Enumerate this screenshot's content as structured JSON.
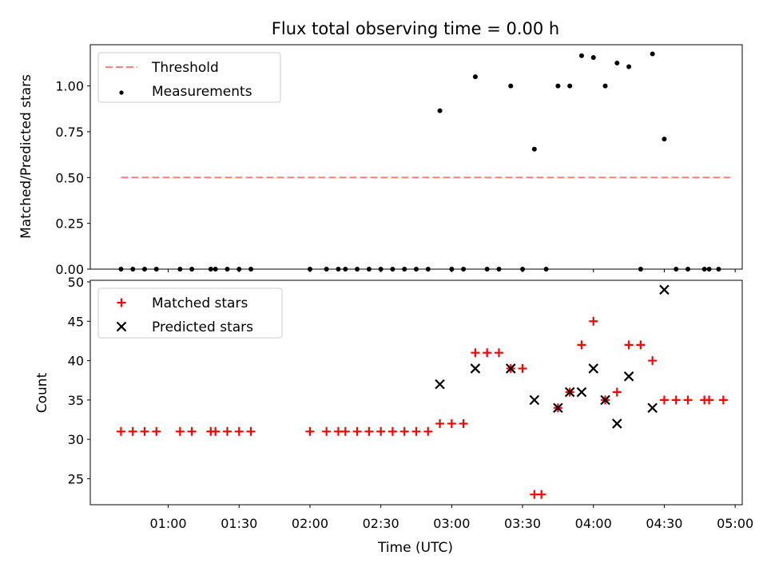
{
  "chart_data": [
    {
      "type": "scatter",
      "title": "Flux total observing time = 0.00 h",
      "xlabel": "",
      "ylabel": "Matched/Predicted stars",
      "ylim": [
        0,
        1.225
      ],
      "yticks": [
        "0.00",
        "0.25",
        "0.50",
        "0.75",
        "1.00"
      ],
      "xlim": [
        "00:27",
        "05:03"
      ],
      "legend": {
        "position": "upper-left",
        "entries": [
          "Threshold",
          "Measurements"
        ]
      },
      "series": [
        {
          "name": "Threshold",
          "style": "dashed-line",
          "color": "#ff7f7f",
          "x": [
            "00:40",
            "04:58"
          ],
          "y": [
            0.5,
            0.5
          ]
        },
        {
          "name": "Measurements",
          "style": "dot",
          "color": "#000000",
          "x": [
            "00:40",
            "00:45",
            "00:50",
            "00:55",
            "01:05",
            "01:10",
            "01:18",
            "01:20",
            "01:25",
            "01:30",
            "01:35",
            "02:00",
            "02:07",
            "02:12",
            "02:15",
            "02:20",
            "02:25",
            "02:30",
            "02:35",
            "02:40",
            "02:45",
            "02:50",
            "02:55",
            "03:00",
            "03:05",
            "03:10",
            "03:15",
            "03:20",
            "03:25",
            "03:30",
            "03:35",
            "03:40",
            "03:45",
            "03:50",
            "03:55",
            "04:00",
            "04:05",
            "04:10",
            "04:15",
            "04:20",
            "04:25",
            "04:30",
            "04:35",
            "04:40",
            "04:47",
            "04:49",
            "04:53"
          ],
          "y": [
            0,
            0,
            0,
            0,
            0,
            0,
            0,
            0,
            0,
            0,
            0,
            0,
            0,
            0,
            0,
            0,
            0,
            0,
            0,
            0,
            0,
            0,
            0.865,
            0,
            0,
            1.05,
            0,
            0,
            1.0,
            0,
            0.655,
            0,
            1.0,
            1.0,
            1.165,
            1.155,
            1.0,
            1.125,
            1.105,
            0,
            1.175,
            0.71,
            0,
            0,
            0,
            0,
            0
          ]
        }
      ]
    },
    {
      "type": "scatter",
      "title": "",
      "xlabel": "Time (UTC)",
      "ylabel": "Count",
      "ylim": [
        21.7,
        50.2
      ],
      "yticks": [
        "25",
        "30",
        "35",
        "40",
        "45",
        "50"
      ],
      "xlim": [
        "00:27",
        "05:03"
      ],
      "xticks": [
        "01:00",
        "01:30",
        "02:00",
        "02:30",
        "03:00",
        "03:30",
        "04:00",
        "04:30",
        "05:00"
      ],
      "legend": {
        "position": "upper-left",
        "entries": [
          "Matched stars",
          "Predicted stars"
        ]
      },
      "series": [
        {
          "name": "Matched stars",
          "marker": "plus",
          "color": "#ff0000",
          "x": [
            "00:40",
            "00:45",
            "00:50",
            "00:55",
            "01:05",
            "01:10",
            "01:18",
            "01:20",
            "01:25",
            "01:30",
            "01:35",
            "02:00",
            "02:07",
            "02:12",
            "02:15",
            "02:20",
            "02:25",
            "02:30",
            "02:35",
            "02:40",
            "02:45",
            "02:50",
            "02:55",
            "03:00",
            "03:05",
            "03:10",
            "03:15",
            "03:20",
            "03:25",
            "03:30",
            "03:35",
            "03:38",
            "03:45",
            "03:50",
            "03:55",
            "04:00",
            "04:05",
            "04:10",
            "04:15",
            "04:20",
            "04:25",
            "04:30",
            "04:35",
            "04:40",
            "04:47",
            "04:49",
            "04:55"
          ],
          "y": [
            31,
            31,
            31,
            31,
            31,
            31,
            31,
            31,
            31,
            31,
            31,
            31,
            31,
            31,
            31,
            31,
            31,
            31,
            31,
            31,
            31,
            31,
            32,
            32,
            32,
            41,
            41,
            41,
            39,
            39,
            23,
            23,
            34,
            36,
            42,
            45,
            35,
            36,
            42,
            42,
            40,
            35,
            35,
            35,
            35,
            35,
            35
          ]
        },
        {
          "name": "Predicted stars",
          "marker": "x",
          "color": "#000000",
          "x": [
            "02:55",
            "03:10",
            "03:25",
            "03:35",
            "03:45",
            "03:50",
            "03:55",
            "04:00",
            "04:05",
            "04:10",
            "04:15",
            "04:25",
            "04:30"
          ],
          "y": [
            37,
            39,
            39,
            35,
            34,
            36,
            36,
            39,
            35,
            32,
            38,
            34,
            49
          ]
        }
      ]
    }
  ]
}
